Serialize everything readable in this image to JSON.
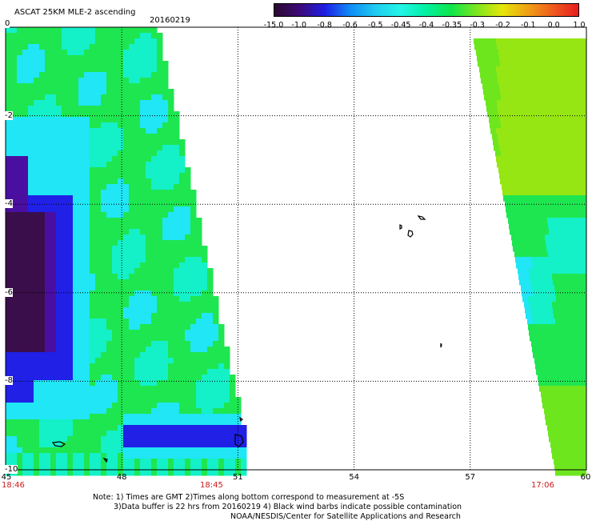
{
  "header": {
    "title": "ASCAT 25KM MLE-2 ascending",
    "date": "20160219"
  },
  "colorbar": {
    "labels": [
      "-15.0",
      "-1.0",
      "-0.8",
      "-0.6",
      "-0.5",
      "-0.45",
      "-0.4",
      "-0.35",
      "-0.3",
      "-0.2",
      "-0.1",
      "0.0",
      "1.0"
    ],
    "colors": [
      "#2a0a2e",
      "#3c0a78",
      "#1e1ee6",
      "#0f8cf5",
      "#1ecdf0",
      "#22f5e6",
      "#00f0a0",
      "#10e64a",
      "#7ee61e",
      "#e6e60a",
      "#f0a014",
      "#f05a1e",
      "#e61e1e"
    ]
  },
  "map": {
    "lon_ticks": [
      "45",
      "48",
      "51",
      "54",
      "57",
      "60"
    ],
    "lat_ticks": [
      "0",
      "-2",
      "-4",
      "-6",
      "-8",
      "-10"
    ],
    "pass_times": {
      "left_start": "18:46",
      "left_end": "18:45",
      "right": "17:06"
    },
    "lon_range": [
      45,
      60
    ],
    "lat_range": [
      -10,
      0
    ],
    "colors": {
      "dark_purple": "#3a0e4a",
      "purple": "#4a0fa0",
      "blue": "#2020e6",
      "cyan": "#20e6f5",
      "aqua": "#14f0c8",
      "green": "#1ee650",
      "light_green": "#6ee61e",
      "yellow_green": "#96e614"
    }
  },
  "footer": {
    "line1": "Note: 1) Times are GMT 2)Times along bottom correspond to measurement at -5S",
    "line2": "3)Data buffer is 22 hrs from 20160219 4) Black wind barbs indicate possible contamination",
    "line3": "NOAA/NESDIS/Center for Satellite Applications and Research"
  }
}
